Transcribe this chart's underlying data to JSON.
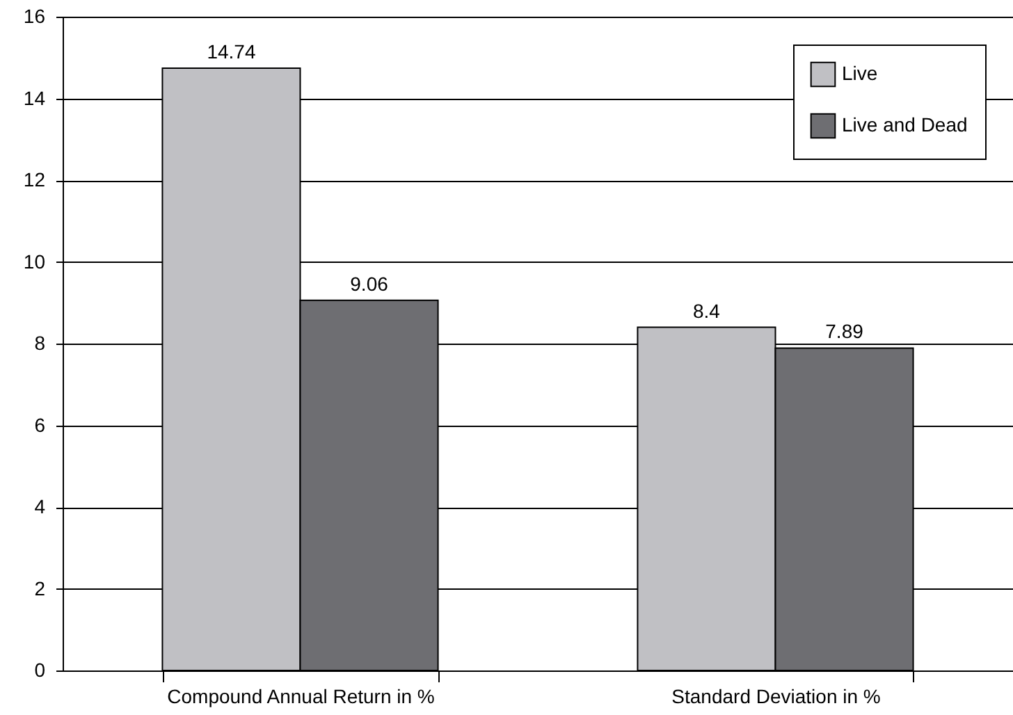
{
  "chart_data": {
    "type": "bar",
    "categories": [
      "Compound Annual Return in %",
      "Standard Deviation in %"
    ],
    "series": [
      {
        "name": "Live",
        "color": "#c0c0c4",
        "values": [
          14.74,
          8.4
        ]
      },
      {
        "name": "Live and Dead",
        "color": "#6e6e72",
        "values": [
          9.06,
          7.89
        ]
      }
    ],
    "ylim": [
      0,
      16
    ],
    "yticks": [
      0,
      2,
      4,
      6,
      8,
      10,
      12,
      14,
      16
    ],
    "grid": "y",
    "legend": "top right",
    "data_labels": true
  }
}
